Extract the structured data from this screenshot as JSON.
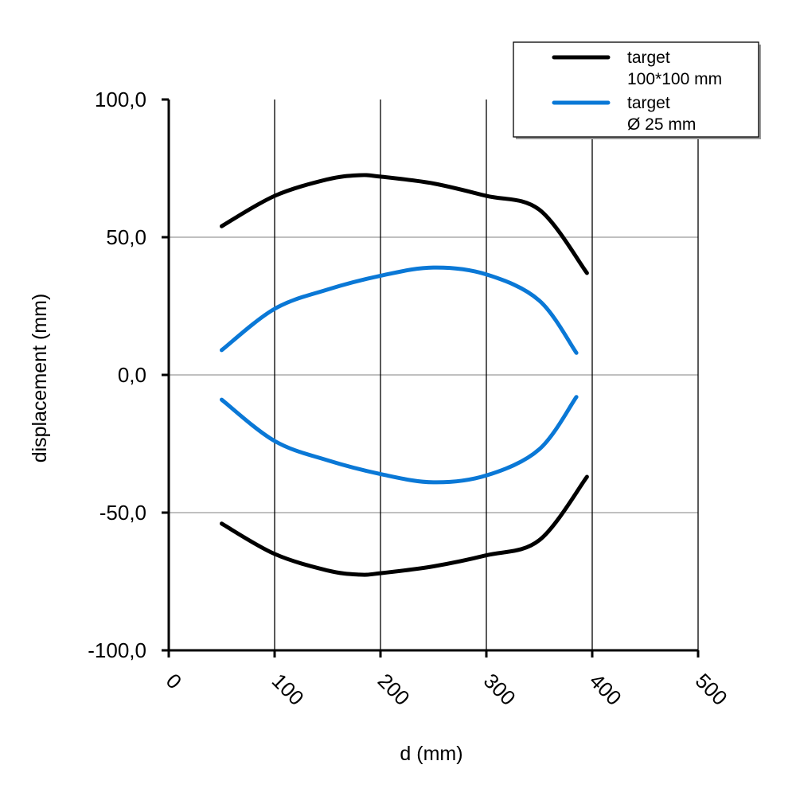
{
  "chart_data": {
    "type": "line",
    "title": "",
    "xlabel": "d (mm)",
    "ylabel": "displacement (mm)",
    "xlim": [
      0,
      500
    ],
    "ylim": [
      -100,
      100
    ],
    "x_ticks": [
      0,
      100,
      200,
      300,
      400,
      500
    ],
    "x_tick_labels": [
      "0",
      "100",
      "200",
      "300",
      "400",
      "500"
    ],
    "y_ticks": [
      -100,
      -50,
      0,
      50,
      100
    ],
    "y_tick_labels": [
      "-100,0",
      "-50,0",
      "0,0",
      "50,0",
      "100,0"
    ],
    "grid": {
      "vertical": true,
      "horizontal": true
    },
    "legend": {
      "placement": "top-right",
      "entries": [
        {
          "series": "target_100x100",
          "lines": [
            "target",
            "100*100 mm"
          ],
          "color": "#000000"
        },
        {
          "series": "target_25",
          "lines": [
            "target",
            "Ø 25 mm"
          ],
          "color": "#0a78d6"
        }
      ]
    },
    "series": [
      {
        "id": "target_100x100",
        "name": "target 100*100 mm",
        "color": "#000000",
        "traces": [
          {
            "x": [
              50,
              100,
              150,
              180,
              200,
              250,
              300,
              350,
              395
            ],
            "y": [
              54,
              65,
              71,
              72.5,
              72,
              69.5,
              65,
              60,
              37
            ]
          },
          {
            "x": [
              50,
              100,
              150,
              180,
              200,
              250,
              300,
              350,
              395
            ],
            "y": [
              -54,
              -65,
              -71,
              -72.5,
              -72,
              -69.5,
              -65.5,
              -60,
              -37
            ]
          }
        ]
      },
      {
        "id": "target_25",
        "name": "target Ø 25 mm",
        "color": "#0a78d6",
        "traces": [
          {
            "x": [
              50,
              100,
              150,
              200,
              250,
              300,
              350,
              385
            ],
            "y": [
              9,
              24,
              31,
              36,
              39,
              36.5,
              27,
              8
            ]
          },
          {
            "x": [
              50,
              100,
              150,
              200,
              250,
              300,
              350,
              385
            ],
            "y": [
              -9,
              -24,
              -31,
              -36,
              -39,
              -36.5,
              -27,
              -8
            ]
          }
        ]
      }
    ]
  }
}
